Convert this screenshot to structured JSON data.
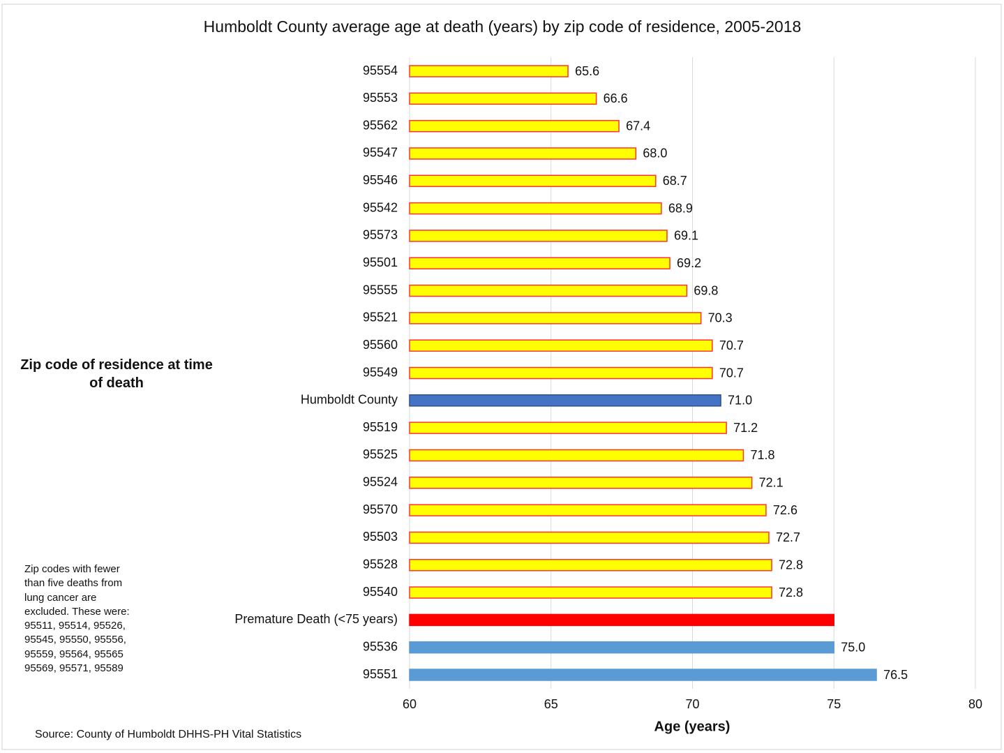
{
  "chart_data": {
    "type": "barh",
    "title": "Humboldt County average age at death (years) by zip code of residence, 2005-2018",
    "xlabel": "Age (years)",
    "ylabel": "Zip code of residence at time of death",
    "note": [
      "Zip codes with fewer",
      "than five deaths from",
      "lung cancer are",
      "excluded.  These were:",
      "95511, 95514, 95526,",
      "95545, 95550, 95556,",
      "95559, 95564, 95565",
      "95569, 95571, 95589"
    ],
    "source": "Source:  County of Humboldt  DHHS-PH Vital Statistics",
    "categories": [
      "95554",
      "95553",
      "95562",
      "95547",
      "95546",
      "95542",
      "95573",
      "95501",
      "95555",
      "95521",
      "95560",
      "95549",
      "Humboldt County",
      "95519",
      "95525",
      "95524",
      "95570",
      "95503",
      "95528",
      "95540",
      "Premature Death (<75 years)",
      "95536",
      "95551"
    ],
    "values": [
      65.6,
      66.6,
      67.4,
      68.0,
      68.7,
      68.9,
      69.1,
      69.2,
      69.8,
      70.3,
      70.7,
      70.7,
      71.0,
      71.2,
      71.8,
      72.1,
      72.6,
      72.7,
      72.8,
      72.8,
      75,
      75.0,
      76.5
    ],
    "value_labels": [
      "65.6",
      "66.6",
      "67.4",
      "68.0",
      "68.7",
      "68.9",
      "69.1",
      "69.2",
      "69.8",
      "70.3",
      "70.7",
      "70.7",
      "71.0",
      "71.2",
      "71.8",
      "72.1",
      "72.6",
      "72.7",
      "72.8",
      "72.8",
      null,
      "75.0",
      "76.5"
    ],
    "colors": [
      "#ffff00",
      "#ffff00",
      "#ffff00",
      "#ffff00",
      "#ffff00",
      "#ffff00",
      "#ffff00",
      "#ffff00",
      "#ffff00",
      "#ffff00",
      "#ffff00",
      "#ffff00",
      "#4472c4",
      "#ffff00",
      "#ffff00",
      "#ffff00",
      "#ffff00",
      "#ffff00",
      "#ffff00",
      "#ffff00",
      "#ff0000",
      "#5b9bd5",
      "#5b9bd5"
    ],
    "edge_colors": [
      "#ff3333",
      "#ff3333",
      "#ff3333",
      "#ff3333",
      "#ff3333",
      "#ff3333",
      "#ff3333",
      "#ff3333",
      "#ff3333",
      "#ff3333",
      "#ff3333",
      "#ff3333",
      "#2f4f8f",
      "#ff3333",
      "#ff3333",
      "#ff3333",
      "#ff3333",
      "#ff3333",
      "#ff3333",
      "#ff3333",
      "#ff0000",
      "#5b9bd5",
      "#5b9bd5"
    ],
    "xlim": [
      60,
      80
    ],
    "xticks": [
      60,
      65,
      70,
      75,
      80
    ],
    "grid": true
  }
}
